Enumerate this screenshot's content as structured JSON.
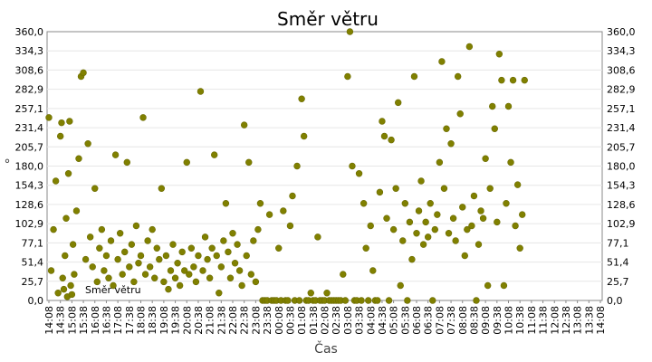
{
  "chart_data": {
    "type": "scatter",
    "title": "Směr větru",
    "xlabel": "Čas",
    "ylabel": "°",
    "ylim": [
      0,
      360
    ],
    "y_ticks": [
      "0,0",
      "25,7",
      "51,4",
      "77,1",
      "102,9",
      "128,6",
      "154,3",
      "180,0",
      "205,7",
      "231,4",
      "257,1",
      "282,9",
      "308,6",
      "334,3",
      "360,0"
    ],
    "x_ticks": [
      "14:08",
      "14:38",
      "15:08",
      "15:38",
      "16:08",
      "16:38",
      "17:08",
      "17:38",
      "18:08",
      "18:38",
      "19:08",
      "19:38",
      "20:08",
      "20:38",
      "21:08",
      "21:38",
      "22:08",
      "22:38",
      "23:08",
      "23:38",
      "00:08",
      "00:38",
      "01:08",
      "01:38",
      "02:08",
      "02:38",
      "03:08",
      "03:38",
      "04:08",
      "04:38",
      "05:08",
      "05:38",
      "06:08",
      "06:38",
      "07:08",
      "07:38",
      "08:08",
      "08:38",
      "09:08",
      "09:38",
      "10:08",
      "10:38",
      "11:08",
      "11:38",
      "12:08",
      "12:38",
      "13:08",
      "13:38",
      "14:08"
    ],
    "grid": true,
    "legend_label": "Směr větru",
    "series": [
      {
        "name": "Směr větru",
        "color": "#808000",
        "points": [
          [
            0.0,
            245
          ],
          [
            0.2,
            40
          ],
          [
            0.4,
            95
          ],
          [
            0.6,
            160
          ],
          [
            0.8,
            10
          ],
          [
            1.0,
            220
          ],
          [
            1.1,
            238
          ],
          [
            1.2,
            30
          ],
          [
            1.3,
            15
          ],
          [
            1.4,
            60
          ],
          [
            1.5,
            110
          ],
          [
            1.6,
            5
          ],
          [
            1.7,
            170
          ],
          [
            1.8,
            240
          ],
          [
            1.9,
            20
          ],
          [
            2.0,
            8
          ],
          [
            2.1,
            75
          ],
          [
            2.2,
            35
          ],
          [
            2.4,
            120
          ],
          [
            2.6,
            190
          ],
          [
            2.8,
            300
          ],
          [
            3.0,
            305
          ],
          [
            3.2,
            55
          ],
          [
            3.4,
            210
          ],
          [
            3.6,
            85
          ],
          [
            3.8,
            45
          ],
          [
            4.0,
            150
          ],
          [
            4.2,
            25
          ],
          [
            4.4,
            70
          ],
          [
            4.6,
            95
          ],
          [
            4.8,
            40
          ],
          [
            5.0,
            60
          ],
          [
            5.2,
            30
          ],
          [
            5.4,
            80
          ],
          [
            5.6,
            20
          ],
          [
            5.8,
            195
          ],
          [
            6.0,
            55
          ],
          [
            6.2,
            90
          ],
          [
            6.4,
            35
          ],
          [
            6.6,
            65
          ],
          [
            6.8,
            185
          ],
          [
            7.0,
            45
          ],
          [
            7.2,
            75
          ],
          [
            7.4,
            25
          ],
          [
            7.6,
            100
          ],
          [
            7.8,
            50
          ],
          [
            8.0,
            60
          ],
          [
            8.2,
            245
          ],
          [
            8.4,
            35
          ],
          [
            8.6,
            80
          ],
          [
            8.8,
            45
          ],
          [
            9.0,
            95
          ],
          [
            9.2,
            30
          ],
          [
            9.4,
            70
          ],
          [
            9.6,
            55
          ],
          [
            9.8,
            150
          ],
          [
            10.0,
            25
          ],
          [
            10.2,
            60
          ],
          [
            10.4,
            15
          ],
          [
            10.6,
            40
          ],
          [
            10.8,
            75
          ],
          [
            11.0,
            30
          ],
          [
            11.2,
            50
          ],
          [
            11.4,
            20
          ],
          [
            11.6,
            65
          ],
          [
            11.8,
            40
          ],
          [
            12.0,
            185
          ],
          [
            12.2,
            35
          ],
          [
            12.4,
            70
          ],
          [
            12.6,
            45
          ],
          [
            12.8,
            25
          ],
          [
            13.0,
            60
          ],
          [
            13.2,
            280
          ],
          [
            13.4,
            40
          ],
          [
            13.6,
            85
          ],
          [
            13.8,
            55
          ],
          [
            14.0,
            30
          ],
          [
            14.2,
            70
          ],
          [
            14.4,
            195
          ],
          [
            14.6,
            60
          ],
          [
            14.8,
            10
          ],
          [
            15.0,
            45
          ],
          [
            15.2,
            80
          ],
          [
            15.4,
            130
          ],
          [
            15.6,
            65
          ],
          [
            15.8,
            30
          ],
          [
            16.0,
            90
          ],
          [
            16.2,
            50
          ],
          [
            16.4,
            75
          ],
          [
            16.6,
            40
          ],
          [
            16.8,
            20
          ],
          [
            17.0,
            235
          ],
          [
            17.2,
            60
          ],
          [
            17.4,
            185
          ],
          [
            17.6,
            35
          ],
          [
            17.8,
            80
          ],
          [
            18.0,
            25
          ],
          [
            18.2,
            95
          ],
          [
            18.4,
            130
          ],
          [
            18.6,
            0
          ],
          [
            18.8,
            0
          ],
          [
            19.0,
            0
          ],
          [
            19.2,
            115
          ],
          [
            19.4,
            0
          ],
          [
            19.6,
            0
          ],
          [
            19.8,
            0
          ],
          [
            20.0,
            70
          ],
          [
            20.2,
            0
          ],
          [
            20.4,
            120
          ],
          [
            20.6,
            0
          ],
          [
            20.8,
            0
          ],
          [
            21.0,
            100
          ],
          [
            21.2,
            140
          ],
          [
            21.4,
            0
          ],
          [
            21.6,
            180
          ],
          [
            21.8,
            0
          ],
          [
            22.0,
            270
          ],
          [
            22.2,
            220
          ],
          [
            22.4,
            0
          ],
          [
            22.6,
            0
          ],
          [
            22.8,
            10
          ],
          [
            23.0,
            0
          ],
          [
            23.2,
            0
          ],
          [
            23.4,
            85
          ],
          [
            23.6,
            0
          ],
          [
            23.8,
            0
          ],
          [
            24.0,
            0
          ],
          [
            24.2,
            10
          ],
          [
            24.4,
            0
          ],
          [
            24.6,
            0
          ],
          [
            24.8,
            0
          ],
          [
            25.0,
            0
          ],
          [
            25.2,
            0
          ],
          [
            25.4,
            0
          ],
          [
            25.6,
            35
          ],
          [
            25.8,
            0
          ],
          [
            26.0,
            300
          ],
          [
            26.2,
            360
          ],
          [
            26.4,
            180
          ],
          [
            26.6,
            0
          ],
          [
            26.8,
            0
          ],
          [
            27.0,
            170
          ],
          [
            27.2,
            0
          ],
          [
            27.4,
            130
          ],
          [
            27.6,
            70
          ],
          [
            27.8,
            0
          ],
          [
            28.0,
            100
          ],
          [
            28.2,
            40
          ],
          [
            28.4,
            0
          ],
          [
            28.6,
            0
          ],
          [
            28.8,
            145
          ],
          [
            29.0,
            240
          ],
          [
            29.2,
            220
          ],
          [
            29.4,
            110
          ],
          [
            29.6,
            0
          ],
          [
            29.8,
            215
          ],
          [
            30.0,
            95
          ],
          [
            30.2,
            150
          ],
          [
            30.4,
            265
          ],
          [
            30.6,
            20
          ],
          [
            30.8,
            80
          ],
          [
            31.0,
            130
          ],
          [
            31.2,
            0
          ],
          [
            31.4,
            105
          ],
          [
            31.6,
            55
          ],
          [
            31.8,
            300
          ],
          [
            32.0,
            90
          ],
          [
            32.2,
            120
          ],
          [
            32.4,
            160
          ],
          [
            32.6,
            75
          ],
          [
            32.8,
            105
          ],
          [
            33.0,
            85
          ],
          [
            33.2,
            130
          ],
          [
            33.4,
            0
          ],
          [
            33.6,
            95
          ],
          [
            33.8,
            115
          ],
          [
            34.0,
            185
          ],
          [
            34.2,
            320
          ],
          [
            34.4,
            150
          ],
          [
            34.6,
            230
          ],
          [
            34.8,
            90
          ],
          [
            35.0,
            210
          ],
          [
            35.2,
            110
          ],
          [
            35.4,
            80
          ],
          [
            35.6,
            300
          ],
          [
            35.8,
            250
          ],
          [
            36.0,
            125
          ],
          [
            36.2,
            60
          ],
          [
            36.4,
            95
          ],
          [
            36.6,
            340
          ],
          [
            36.8,
            100
          ],
          [
            37.0,
            140
          ],
          [
            37.2,
            0
          ],
          [
            37.4,
            75
          ],
          [
            37.6,
            120
          ],
          [
            37.8,
            110
          ],
          [
            38.0,
            190
          ],
          [
            38.2,
            20
          ],
          [
            38.4,
            150
          ],
          [
            38.6,
            260
          ],
          [
            38.8,
            230
          ],
          [
            39.0,
            105
          ],
          [
            39.2,
            330
          ],
          [
            39.4,
            295
          ],
          [
            39.6,
            20
          ],
          [
            39.8,
            130
          ],
          [
            40.0,
            260
          ],
          [
            40.2,
            185
          ],
          [
            40.4,
            295
          ],
          [
            40.6,
            100
          ],
          [
            40.8,
            155
          ],
          [
            41.0,
            70
          ],
          [
            41.2,
            115
          ],
          [
            41.4,
            295
          ]
        ]
      }
    ]
  }
}
